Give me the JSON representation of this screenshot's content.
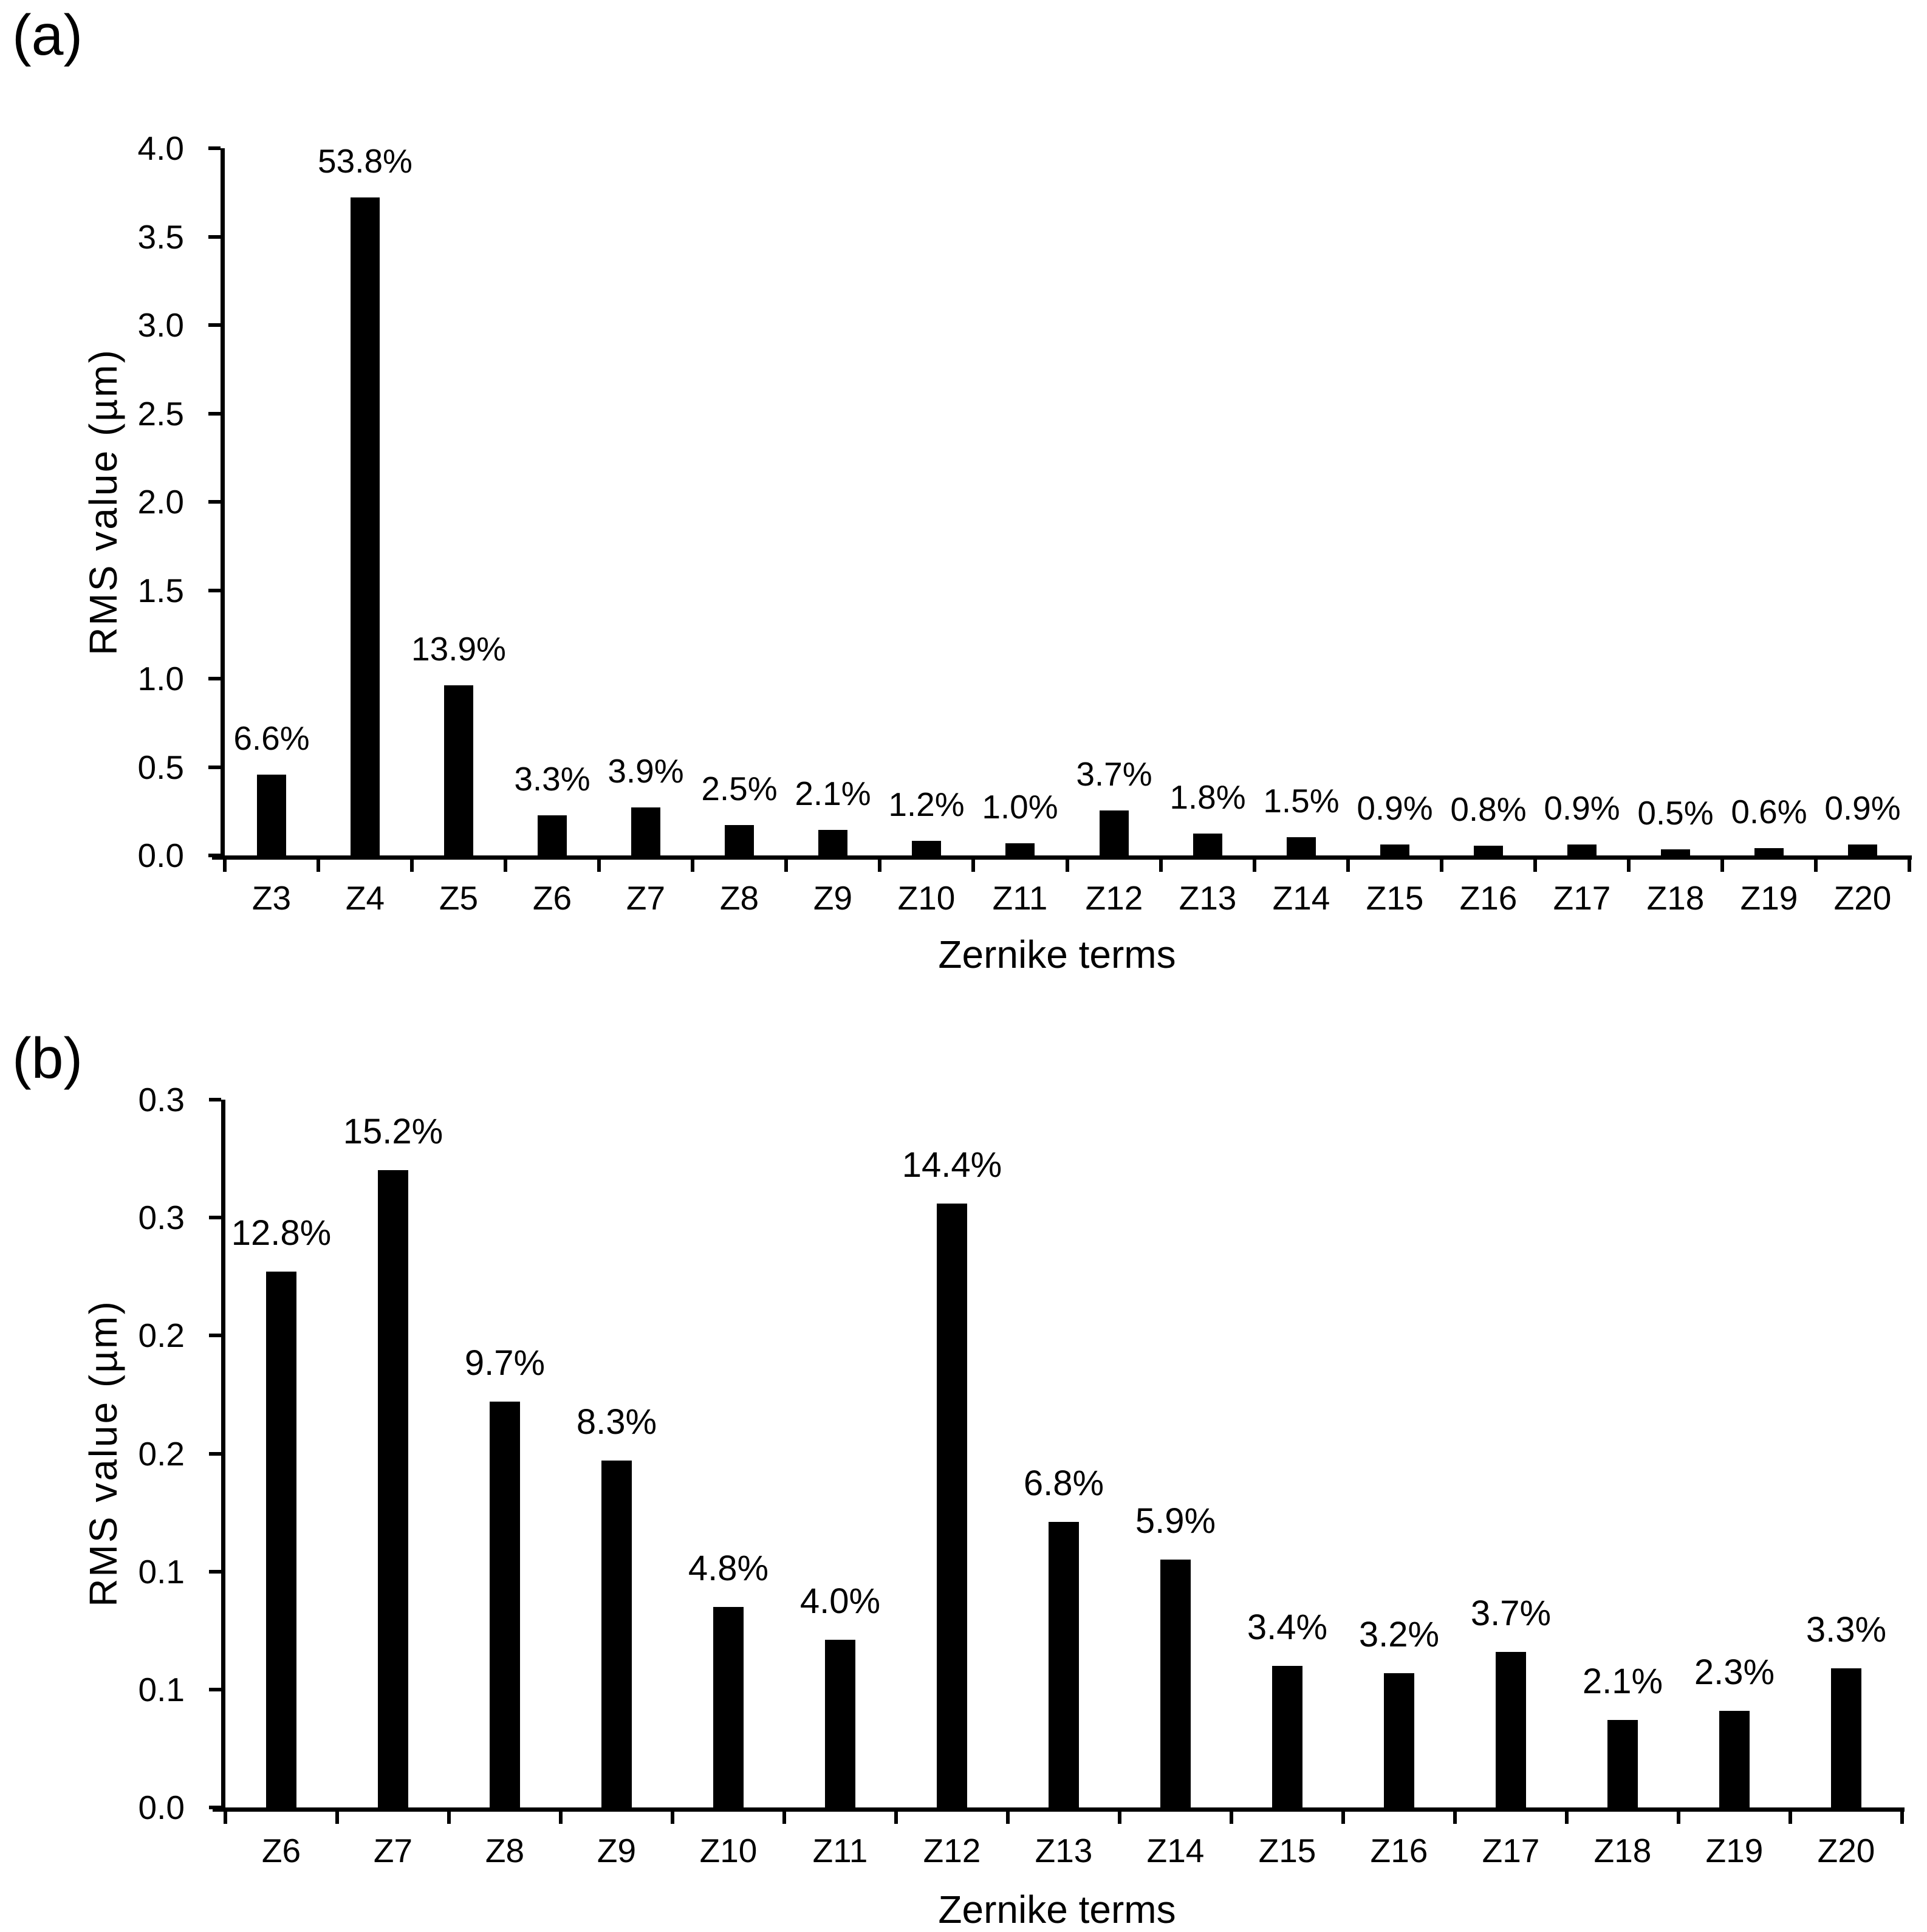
{
  "page": {
    "background": "#ffffff",
    "text_color": "#000000",
    "bar_color": "#000000"
  },
  "chart_data": [
    {
      "id": "a",
      "type": "bar",
      "panel_label": "(a)",
      "xlabel": "Zernike terms",
      "ylabel": "RMS value (µm)",
      "categories": [
        "Z3",
        "Z4",
        "Z5",
        "Z6",
        "Z7",
        "Z8",
        "Z9",
        "Z10",
        "Z11",
        "Z12",
        "Z13",
        "Z14",
        "Z15",
        "Z16",
        "Z17",
        "Z18",
        "Z19",
        "Z20"
      ],
      "values": [
        0.456,
        3.72,
        0.961,
        0.228,
        0.27,
        0.173,
        0.145,
        0.083,
        0.069,
        0.256,
        0.124,
        0.104,
        0.062,
        0.055,
        0.062,
        0.035,
        0.041,
        0.062
      ],
      "bar_labels": [
        "6.6%",
        "53.8%",
        "13.9%",
        "3.3%",
        "3.9%",
        "2.5%",
        "2.1%",
        "1.2%",
        "1.0%",
        "3.7%",
        "1.8%",
        "1.5%",
        "0.9%",
        "0.8%",
        "0.9%",
        "0.5%",
        "0.6%",
        "0.9%"
      ],
      "ylim": [
        0,
        4.0
      ],
      "ytick_step": 0.5,
      "ytick_labels": [
        "4.0",
        "3.5",
        "3.0",
        "2.5",
        "2.0",
        "1.5",
        "1.0",
        "0.5",
        "0.0"
      ],
      "grid": false,
      "legend": "none",
      "bar_color": "#000000"
    },
    {
      "id": "b",
      "type": "bar",
      "panel_label": "(b)",
      "xlabel": "Zernike terms",
      "ylabel": "RMS value (µm)",
      "categories": [
        "Z6",
        "Z7",
        "Z8",
        "Z9",
        "Z10",
        "Z11",
        "Z12",
        "Z13",
        "Z14",
        "Z15",
        "Z16",
        "Z17",
        "Z18",
        "Z19",
        "Z20"
      ],
      "values": [
        0.227,
        0.27,
        0.172,
        0.147,
        0.085,
        0.071,
        0.256,
        0.121,
        0.105,
        0.06,
        0.057,
        0.066,
        0.037,
        0.041,
        0.059
      ],
      "bar_labels": [
        "12.8%",
        "15.2%",
        "9.7%",
        "8.3%",
        "4.8%",
        "4.0%",
        "14.4%",
        "6.8%",
        "5.9%",
        "3.4%",
        "3.2%",
        "3.7%",
        "2.1%",
        "2.3%",
        "3.3%"
      ],
      "ylim": [
        0,
        0.3
      ],
      "ytick_step": 0.05,
      "ytick_labels": [
        "0.3",
        "0.3",
        "0.2",
        "0.2",
        "0.1",
        "0.1",
        "0.0"
      ],
      "grid": false,
      "legend": "none",
      "bar_color": "#000000"
    }
  ]
}
